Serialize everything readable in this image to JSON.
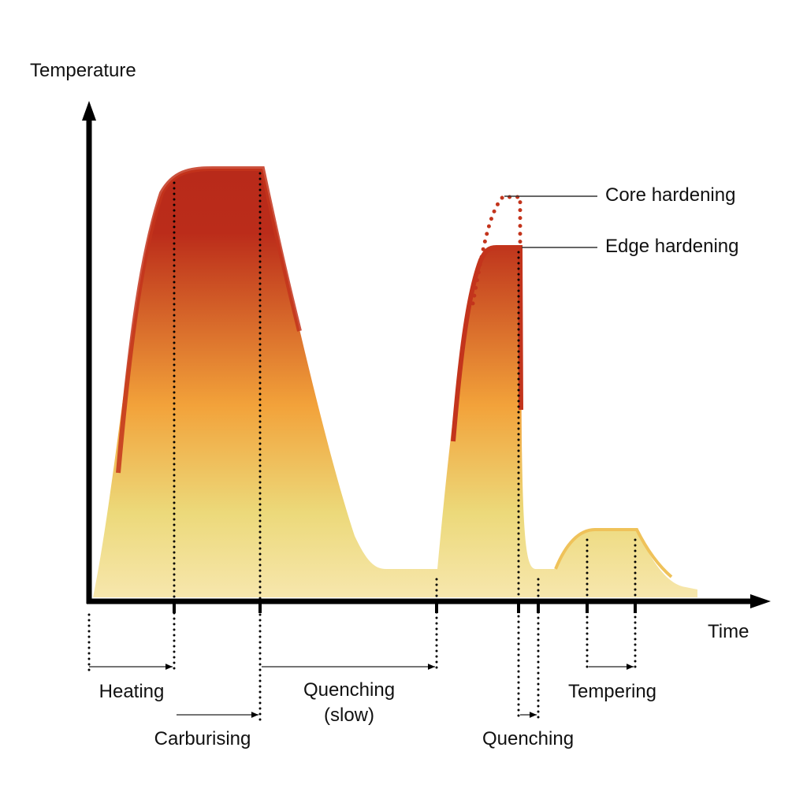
{
  "axes": {
    "y_label": "Temperature",
    "x_label": "Time"
  },
  "curves": {
    "core": "Core hardening",
    "edge": "Edge hardening"
  },
  "phases": [
    {
      "label": "Heating"
    },
    {
      "label": "Carburising"
    },
    {
      "label": "Quenching",
      "sub": "(slow)"
    },
    {
      "label": "Quenching"
    },
    {
      "label": "Tempering"
    }
  ],
  "colors": {
    "hot": "#b82a1a",
    "warm": "#f0a030",
    "cool": "#ecd878",
    "pale": "#f6e6a8",
    "axis": "#000000"
  }
}
